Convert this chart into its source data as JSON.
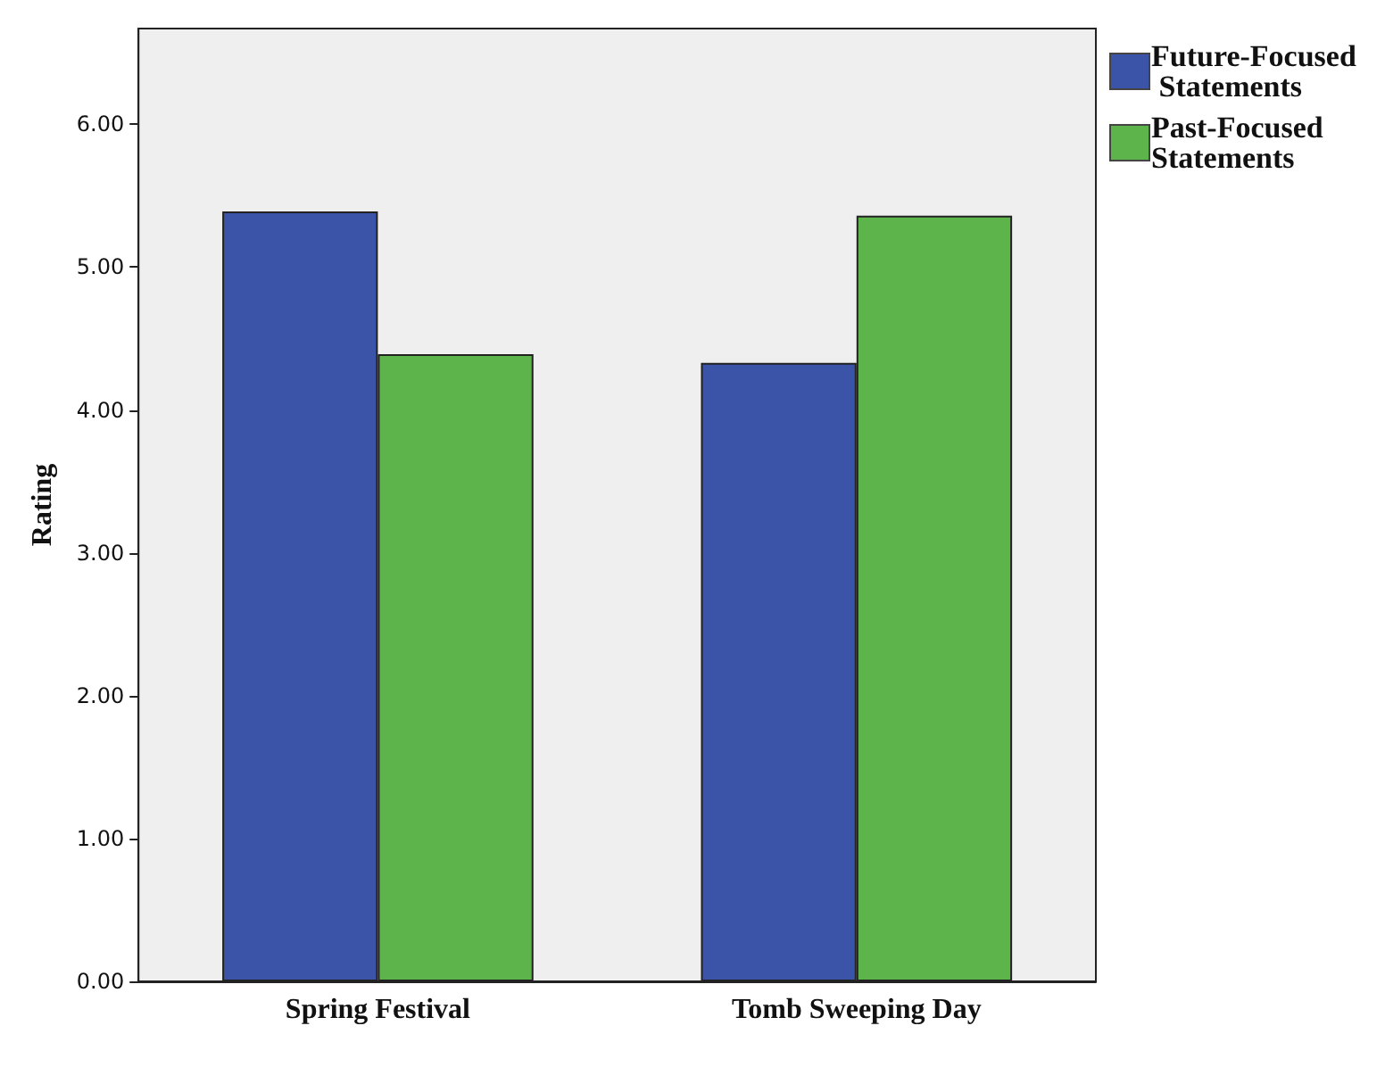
{
  "chart_data": {
    "type": "bar",
    "ylabel": "Rating",
    "categories": [
      "Spring Festival",
      "Tomb Sweeping Day"
    ],
    "series": [
      {
        "name": "Future-Focused Statements",
        "color": "#3b54a8",
        "values": [
          5.39,
          4.33
        ]
      },
      {
        "name": "Past-Focused Statements",
        "color": "#5cb44b",
        "values": [
          4.39,
          5.36
        ]
      }
    ],
    "ylim": [
      0,
      6.67
    ],
    "yticks": [
      {
        "value": 0,
        "label": "0.00"
      },
      {
        "value": 1,
        "label": "1.00"
      },
      {
        "value": 2,
        "label": "2.00"
      },
      {
        "value": 3,
        "label": "3.00"
      },
      {
        "value": 4,
        "label": "4.00"
      },
      {
        "value": 5,
        "label": "5.00"
      },
      {
        "value": 6,
        "label": "6.00"
      }
    ],
    "grid": false,
    "legend": "top right"
  }
}
